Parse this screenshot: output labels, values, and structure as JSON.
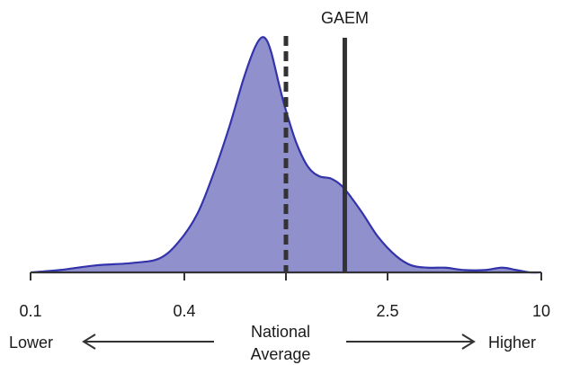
{
  "chart_data": {
    "type": "area",
    "x_scale": "log",
    "xlim": [
      0.1,
      10
    ],
    "x_ticks": [
      {
        "value": 0.1,
        "label": "0.1"
      },
      {
        "value": 0.4,
        "label": "0.4"
      },
      {
        "value": 2.5,
        "label": "2.5"
      },
      {
        "value": 10,
        "label": "10"
      }
    ],
    "series": [
      {
        "fill_color": "#9090cc",
        "line_color": "#3333aa",
        "x": [
          0.1,
          0.13,
          0.18,
          0.25,
          0.32,
          0.38,
          0.45,
          0.52,
          0.6,
          0.68,
          0.75,
          0.8,
          0.84,
          0.88,
          0.94,
          1.0,
          1.1,
          1.22,
          1.35,
          1.5,
          1.65,
          1.8,
          2.0,
          2.3,
          2.7,
          3.1,
          3.6,
          4.2,
          5.0,
          6.0,
          7.0,
          8.0,
          9.0,
          10.0
        ],
        "y": [
          0.0,
          0.01,
          0.03,
          0.04,
          0.06,
          0.13,
          0.25,
          0.42,
          0.62,
          0.82,
          0.95,
          1.0,
          0.99,
          0.93,
          0.8,
          0.69,
          0.55,
          0.45,
          0.41,
          0.4,
          0.37,
          0.32,
          0.25,
          0.15,
          0.07,
          0.03,
          0.02,
          0.02,
          0.01,
          0.01,
          0.02,
          0.01,
          0.0,
          0.0
        ]
      }
    ],
    "reference_lines": [
      {
        "x": 1.0,
        "style": "dashed",
        "label": "",
        "color": "#333333"
      },
      {
        "x": 1.7,
        "style": "solid",
        "label": "GAEM",
        "color": "#333333"
      }
    ],
    "ylim": [
      0,
      1.0
    ],
    "grid": false,
    "annotations": {
      "lower": "Lower",
      "higher": "Higher",
      "center_line1": "National",
      "center_line2": "Average"
    }
  }
}
